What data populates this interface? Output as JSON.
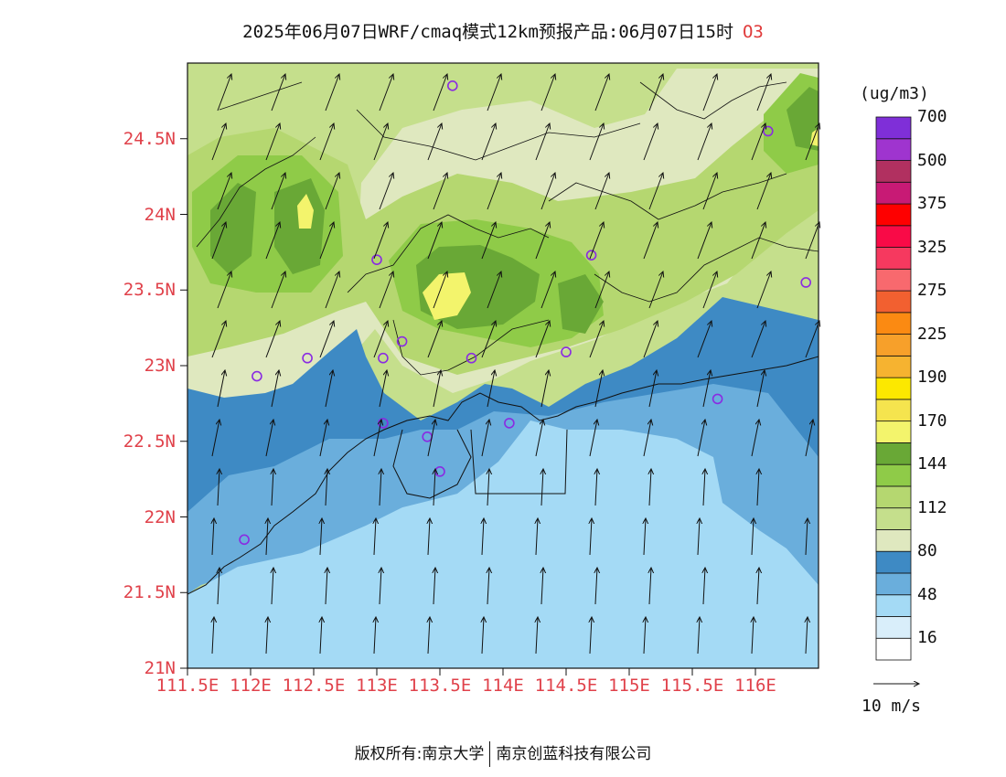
{
  "title": {
    "text": "2025年06月07日WRF/cmaq模式12km预报产品:06月07日15时",
    "species": "O3"
  },
  "map": {
    "lon_range": [
      111.5,
      116.5
    ],
    "lat_range": [
      21.0,
      25.0
    ],
    "lat_ticks": [
      {
        "value": 24.5,
        "label": "24.5N"
      },
      {
        "value": 24.0,
        "label": "24N"
      },
      {
        "value": 23.5,
        "label": "23.5N"
      },
      {
        "value": 23.0,
        "label": "23N"
      },
      {
        "value": 22.5,
        "label": "22.5N"
      },
      {
        "value": 22.0,
        "label": "22N"
      },
      {
        "value": 21.5,
        "label": "21.5N"
      },
      {
        "value": 21.0,
        "label": "21N"
      }
    ],
    "lon_ticks": [
      {
        "value": 111.5,
        "label": "111.5E"
      },
      {
        "value": 112.0,
        "label": "112E"
      },
      {
        "value": 112.5,
        "label": "112.5E"
      },
      {
        "value": 113.0,
        "label": "113E"
      },
      {
        "value": 113.5,
        "label": "113.5E"
      },
      {
        "value": 114.0,
        "label": "114E"
      },
      {
        "value": 114.5,
        "label": "114.5E"
      },
      {
        "value": 115.0,
        "label": "115E"
      },
      {
        "value": 115.5,
        "label": "115.5E"
      },
      {
        "value": 116.0,
        "label": "116E"
      }
    ],
    "stations": [
      [
        113.6,
        24.85
      ],
      [
        116.1,
        24.55
      ],
      [
        113.0,
        23.7
      ],
      [
        114.7,
        23.73
      ],
      [
        116.4,
        23.55
      ],
      [
        112.45,
        23.05
      ],
      [
        112.05,
        22.93
      ],
      [
        113.05,
        23.05
      ],
      [
        113.2,
        23.16
      ],
      [
        113.75,
        23.05
      ],
      [
        114.5,
        23.09
      ],
      [
        113.05,
        22.62
      ],
      [
        113.4,
        22.53
      ],
      [
        114.05,
        22.62
      ],
      [
        113.5,
        22.3
      ],
      [
        115.7,
        22.78
      ],
      [
        111.95,
        21.85
      ]
    ]
  },
  "legend": {
    "unit": "(ug/m3)",
    "colors": [
      "#ffffff",
      "#d9eefa",
      "#a4daf5",
      "#6aaedc",
      "#3e8ac4",
      "#dfe8bf",
      "#c5df8c",
      "#b5d770",
      "#8fcb48",
      "#69a836",
      "#f3f46c",
      "#f5e44e",
      "#fce800",
      "#f6b330",
      "#f7a02a",
      "#fb8a12",
      "#f26030",
      "#f8696e",
      "#f6395f",
      "#f90a47",
      "#fe0000",
      "#c81a75",
      "#b13060",
      "#9f34cf",
      "#7f2fd8"
    ],
    "labels": [
      "16",
      "48",
      "80",
      "112",
      "144",
      "170",
      "190",
      "225",
      "275",
      "325",
      "375",
      "500",
      "700"
    ]
  },
  "wind_key": {
    "label": "10 m/s"
  },
  "footer": {
    "left": "版权所有:南京大学",
    "right": "南京创蓝科技有限公司"
  }
}
